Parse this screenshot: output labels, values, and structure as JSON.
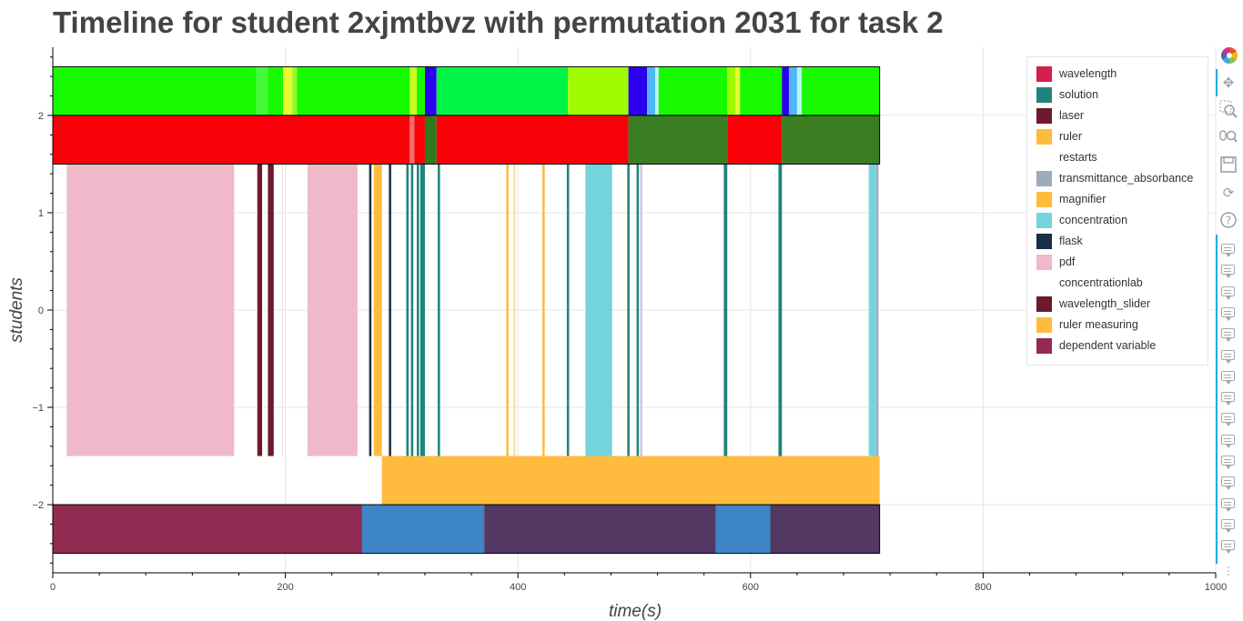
{
  "title": "Timeline for student 2xjmtbvz with permutation 2031 for task 2",
  "chart_data": {
    "type": "timeline",
    "title": "Timeline for student 2xjmtbvz with permutation 2031 for task 2",
    "xlabel": "time(s)",
    "ylabel": "students",
    "xlim": [
      0,
      1000
    ],
    "ylim": [
      -2.7,
      2.7
    ],
    "xticks": [
      0,
      200,
      400,
      600,
      800,
      1000
    ],
    "yticks": [
      2,
      1,
      0,
      -1,
      -2
    ],
    "ytick_labels": [
      "2",
      "1",
      "0",
      "−1",
      "−2"
    ],
    "grid": true,
    "legend_position": "top-right",
    "legend": [
      {
        "label": "wavelength",
        "color": "#d61f4f"
      },
      {
        "label": "solution",
        "color": "#20847d"
      },
      {
        "label": "laser",
        "color": "#6d1a2c"
      },
      {
        "label": "ruler",
        "color": "#ffbb3d"
      },
      {
        "label": "restarts",
        "color": "#ffffff"
      },
      {
        "label": "transmittance_absorbance",
        "color": "#9eabbd"
      },
      {
        "label": "magnifier",
        "color": "#ffbb3d"
      },
      {
        "label": "concentration",
        "color": "#74d4dd"
      },
      {
        "label": "flask",
        "color": "#1c2e45"
      },
      {
        "label": "pdf",
        "color": "#efb9ca"
      },
      {
        "label": "concentrationlab",
        "color": "#ffffff"
      },
      {
        "label": "wavelength_slider",
        "color": "#6d1a2c"
      },
      {
        "label": "ruler measuring",
        "color": "#ffbb3d"
      },
      {
        "label": "dependent variable",
        "color": "#922b52"
      }
    ],
    "rows": [
      {
        "y": [
          2.0,
          2.5
        ],
        "segments": [
          [
            0,
            175,
            "#17fa00"
          ],
          [
            175,
            185,
            "#43fb3a"
          ],
          [
            185,
            198,
            "#17fa00"
          ],
          [
            198,
            206,
            "#e6fb2c"
          ],
          [
            206,
            210,
            "#8efb22"
          ],
          [
            210,
            307,
            "#17fa00"
          ],
          [
            307,
            313,
            "#c8fb22"
          ],
          [
            313,
            320,
            "#17fa00"
          ],
          [
            320,
            330,
            "#2a00ee"
          ],
          [
            330,
            443,
            "#00f546"
          ],
          [
            443,
            495,
            "#a1fb00"
          ],
          [
            495,
            511,
            "#2a00ee"
          ],
          [
            511,
            518,
            "#4fb6f8"
          ],
          [
            518,
            521,
            "#b8f5f0"
          ],
          [
            521,
            580,
            "#17fa00"
          ],
          [
            580,
            587,
            "#a1fb00"
          ],
          [
            587,
            591,
            "#e6fb2c"
          ],
          [
            591,
            627,
            "#17fa00"
          ],
          [
            627,
            633,
            "#2a00ee"
          ],
          [
            633,
            640,
            "#4fb6f8"
          ],
          [
            640,
            644,
            "#b8f5f0"
          ],
          [
            644,
            711,
            "#17fa00"
          ]
        ]
      },
      {
        "y": [
          1.5,
          2.0
        ],
        "segments": [
          [
            0,
            307,
            "#fa0008"
          ],
          [
            307,
            311,
            "#f26d6d"
          ],
          [
            311,
            320,
            "#fa0008"
          ],
          [
            320,
            330,
            "#2f7a1f"
          ],
          [
            330,
            495,
            "#fa0008"
          ],
          [
            495,
            580,
            "#3a7d22"
          ],
          [
            580,
            627,
            "#fa0008"
          ],
          [
            627,
            711,
            "#3a7d22"
          ]
        ]
      },
      {
        "y": [
          -1.5,
          1.5
        ],
        "segments": [
          [
            12,
            156,
            "#efb9ca"
          ],
          [
            175,
            176,
            "#f5dce4"
          ],
          [
            176,
            180,
            "#6d1a2c"
          ],
          [
            185,
            190,
            "#6d1a2c"
          ],
          [
            197,
            198,
            "#f5dce4"
          ],
          [
            219,
            262,
            "#efb9ca"
          ],
          [
            272,
            274,
            "#1c2e45"
          ],
          [
            276,
            283,
            "#ffbb3d"
          ],
          [
            289,
            291,
            "#1c2e45"
          ],
          [
            304,
            306,
            "#20847d"
          ],
          [
            308,
            310,
            "#20847d"
          ],
          [
            313,
            315,
            "#20847d"
          ],
          [
            316,
            320,
            "#20847d"
          ],
          [
            331,
            333,
            "#20847d"
          ],
          [
            390,
            392,
            "#ffbb3d"
          ],
          [
            396,
            398,
            "#ffe0a8"
          ],
          [
            421,
            423,
            "#ffbb3d"
          ],
          [
            442,
            444,
            "#20847d"
          ],
          [
            458,
            481,
            "#74d4dd"
          ],
          [
            494,
            496,
            "#20847d"
          ],
          [
            502,
            504,
            "#20847d"
          ],
          [
            505,
            507,
            "#c9c9e6"
          ],
          [
            577,
            580,
            "#20847d"
          ],
          [
            624,
            627,
            "#20847d"
          ],
          [
            701,
            702,
            "#cfeef2"
          ],
          [
            702,
            708,
            "#74d4dd"
          ],
          [
            708,
            710,
            "#9eabbd"
          ]
        ]
      },
      {
        "y": [
          -2.0,
          -1.5
        ],
        "segments": [
          [
            283,
            711,
            "#ffbb3d"
          ]
        ]
      },
      {
        "y": [
          -2.5,
          -2.0
        ],
        "segments": [
          [
            0,
            266,
            "#922b52"
          ],
          [
            266,
            371,
            "#3d85c6"
          ],
          [
            371,
            570,
            "#523863"
          ],
          [
            570,
            617,
            "#3d85c6"
          ],
          [
            617,
            711,
            "#523863"
          ]
        ]
      }
    ]
  },
  "toolbar": {
    "tools": [
      "logo-icon",
      "pan-icon",
      "box-zoom-icon",
      "wheel-zoom-icon",
      "save-icon",
      "reset-icon",
      "help-icon"
    ],
    "comment_icon_count": 15,
    "more_glyph": "⋮"
  }
}
